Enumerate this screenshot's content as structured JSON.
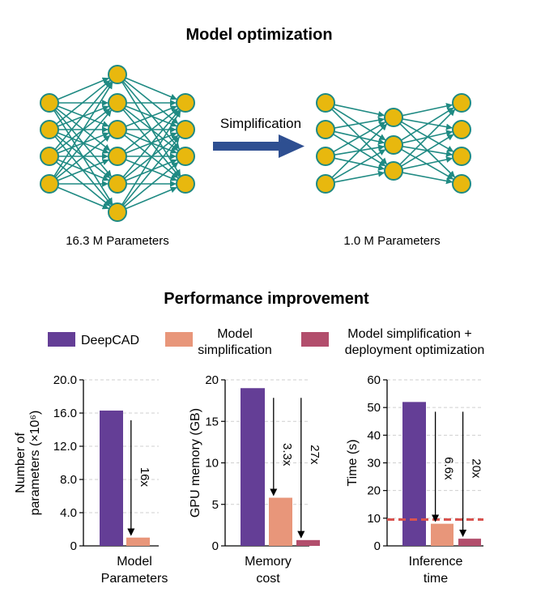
{
  "colors": {
    "node_fill": "#E8B80E",
    "node_stroke": "#1F8A83",
    "edge": "#1F8A83",
    "big_arrow": "#2E4F91",
    "deepcad": "#643E96",
    "model_simplification": "#E8967A",
    "deployment_opt": "#B24E6C",
    "threshold_line": "#D9534F"
  },
  "top": {
    "title": "Model optimization",
    "arrow_label": "Simplification",
    "left_caption": "16.3 M Parameters",
    "right_caption": "1.0 M Parameters",
    "left_net_layers": [
      4,
      6,
      4
    ],
    "right_net_layers": [
      4,
      3,
      4
    ]
  },
  "bottom": {
    "title": "Performance improvement",
    "legend": {
      "deepcad": "DeepCAD",
      "simp_line1": "Model",
      "simp_line2": "simplification",
      "deploy_line1": "Model simplification +",
      "deploy_line2": "deployment optimization"
    }
  },
  "chart_data": [
    {
      "type": "bar",
      "series_names": [
        "DeepCAD",
        "Model simplification"
      ],
      "values": [
        16.3,
        1.0
      ],
      "ylim": [
        0,
        20
      ],
      "yticks": [
        "0",
        "4.0",
        "8.0",
        "12.0",
        "16.0",
        "20.0"
      ],
      "ylabel_line1": "Number of",
      "ylabel_line2": "parameters (×10⁶)",
      "xlabel_line1": "Model",
      "xlabel_line2": "Parameters",
      "annotations": [
        {
          "label": "16x",
          "from": 0,
          "to": 1
        }
      ],
      "grid": "horizontal dashed"
    },
    {
      "type": "bar",
      "series_names": [
        "DeepCAD",
        "Model simplification",
        "Model simplification + deployment optimization"
      ],
      "values": [
        19.0,
        5.8,
        0.7
      ],
      "ylim": [
        0,
        20
      ],
      "yticks": [
        "0",
        "5",
        "10",
        "15",
        "20"
      ],
      "ylabel_line1": "",
      "ylabel_line2": "GPU memory (GB)",
      "xlabel_line1": "Memory",
      "xlabel_line2": "cost",
      "annotations": [
        {
          "label": "3.3x",
          "from": 0,
          "to": 1
        },
        {
          "label": "27x",
          "from": 0,
          "to": 2
        }
      ],
      "grid": "horizontal dashed"
    },
    {
      "type": "bar",
      "series_names": [
        "DeepCAD",
        "Model simplification",
        "Model simplification + deployment optimization"
      ],
      "values": [
        52,
        8,
        2.6
      ],
      "ylim": [
        0,
        60
      ],
      "yticks": [
        "0",
        "10",
        "20",
        "30",
        "40",
        "50",
        "60"
      ],
      "ylabel_line1": "",
      "ylabel_line2": "Time (s)",
      "xlabel_line1": "Inference",
      "xlabel_line2": "time",
      "annotations": [
        {
          "label": "6.6x",
          "from": 0,
          "to": 1
        },
        {
          "label": "20x",
          "from": 0,
          "to": 2
        }
      ],
      "reference_line": 9.5,
      "grid": "horizontal dashed"
    }
  ]
}
